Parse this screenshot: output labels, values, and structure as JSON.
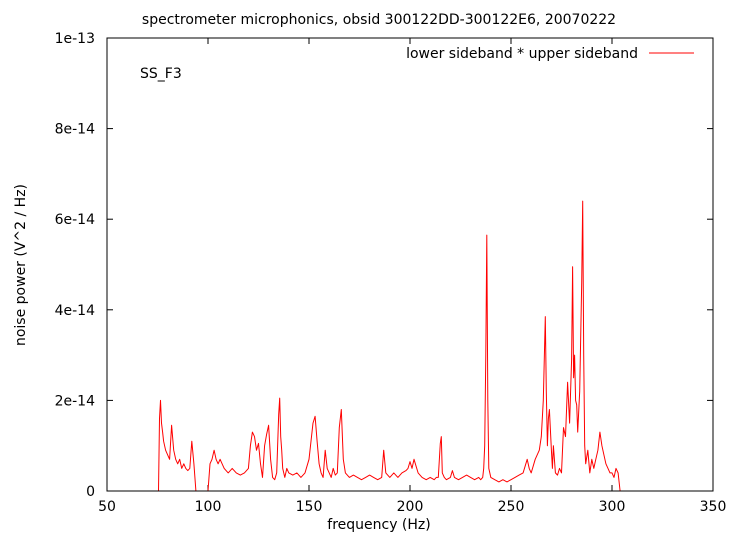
{
  "chart_data": {
    "type": "line",
    "title": "spectrometer microphonics, obsid 300122DD-300122E6, 20070222",
    "xlabel": "frequency (Hz)",
    "ylabel": "noise power (V^2 / Hz)",
    "annotation": "SS_F3",
    "xlim": [
      50,
      350
    ],
    "ylim": [
      0,
      1e-13
    ],
    "xticks": [
      50,
      100,
      150,
      200,
      250,
      300,
      350
    ],
    "yticks": [
      0,
      2e-14,
      4e-14,
      6e-14,
      8e-14,
      1e-13
    ],
    "ytick_labels": [
      "0",
      "2e-14",
      "4e-14",
      "6e-14",
      "8e-14",
      "1e-13"
    ],
    "grid": false,
    "legend_position": "top-right",
    "series": [
      {
        "name": "lower sideband * upper sideband",
        "color": "#ff0000",
        "x": [
          50,
          75.5,
          76,
          76.5,
          77,
          77.5,
          78,
          79,
          80,
          81,
          82,
          83,
          84,
          85,
          86,
          87,
          88,
          89,
          90,
          91,
          92,
          93,
          93.5,
          94,
          100,
          100.5,
          101,
          102,
          103,
          104,
          105,
          106,
          107,
          108,
          110,
          112,
          114,
          116,
          118,
          120,
          121,
          122,
          123,
          124,
          125,
          126,
          127,
          128,
          129,
          130,
          131,
          132,
          133,
          134,
          135,
          135.5,
          136,
          136.5,
          137,
          138,
          139,
          140,
          142,
          144,
          146,
          148,
          150,
          151,
          152,
          153,
          154,
          155,
          156,
          157,
          158,
          159,
          160,
          161,
          162,
          163,
          164,
          165,
          166,
          167,
          168,
          170,
          172,
          174,
          176,
          178,
          180,
          182,
          184,
          186,
          187,
          188,
          190,
          192,
          194,
          196,
          198,
          199,
          200,
          201,
          202,
          204,
          206,
          208,
          210,
          212,
          213,
          214,
          215,
          215.5,
          216,
          217,
          218,
          220,
          221,
          222,
          224,
          226,
          228,
          230,
          232,
          234,
          235,
          236,
          236.5,
          237,
          237.5,
          238,
          238.5,
          239,
          240,
          242,
          244,
          246,
          248,
          250,
          252,
          254,
          256,
          258,
          259,
          260,
          262,
          264,
          265,
          266,
          267,
          267.5,
          268,
          268.5,
          269,
          270,
          270.5,
          271,
          272,
          273,
          274,
          275,
          276,
          277,
          278,
          279,
          280,
          280.5,
          281,
          281.5,
          282,
          282.5,
          283,
          284,
          285,
          285.5,
          286,
          286.5,
          287,
          288,
          289,
          290,
          291,
          292,
          293,
          294,
          295,
          296,
          297,
          298,
          299,
          300,
          301,
          302,
          303,
          304,
          350
        ],
        "y": [
          0,
          0,
          1.6e-14,
          2e-14,
          1.5e-14,
          1.3e-14,
          1.1e-14,
          9e-15,
          8e-15,
          7e-15,
          1.45e-14,
          9e-15,
          7e-15,
          6e-15,
          7e-15,
          5e-15,
          6e-15,
          5e-15,
          4.5e-15,
          5e-15,
          1.1e-14,
          6e-15,
          3e-15,
          0,
          0,
          3e-15,
          6e-15,
          7e-15,
          9e-15,
          7e-15,
          6e-15,
          7e-15,
          6e-15,
          5e-15,
          4e-15,
          5e-15,
          4e-15,
          3.5e-15,
          4e-15,
          5e-15,
          1e-14,
          1.3e-14,
          1.2e-14,
          9e-15,
          1.05e-14,
          6e-15,
          3e-15,
          1e-14,
          1.25e-14,
          1.45e-14,
          7e-15,
          3e-15,
          2.5e-15,
          4e-15,
          1.7e-14,
          2.05e-14,
          1.2e-14,
          9e-15,
          5e-15,
          3e-15,
          5e-15,
          4e-15,
          3.5e-15,
          4e-15,
          3e-15,
          4e-15,
          7e-15,
          1.1e-14,
          1.5e-14,
          1.65e-14,
          1.1e-14,
          6e-15,
          4e-15,
          3e-15,
          9e-15,
          5e-15,
          4e-15,
          3e-15,
          5e-15,
          3.5e-15,
          4e-15,
          1.4e-14,
          1.8e-14,
          7e-15,
          4e-15,
          3e-15,
          3.5e-15,
          3e-15,
          2.5e-15,
          3e-15,
          3.5e-15,
          3e-15,
          2.5e-15,
          3e-15,
          9e-15,
          4e-15,
          3e-15,
          4e-15,
          3e-15,
          4e-15,
          4.5e-15,
          5e-15,
          6.5e-15,
          5e-15,
          7e-15,
          4e-15,
          3e-15,
          2.5e-15,
          3e-15,
          2.5e-15,
          3e-15,
          3e-15,
          1.05e-14,
          1.2e-14,
          4e-15,
          3e-15,
          2.5e-15,
          3e-15,
          4.5e-15,
          3e-15,
          2.5e-15,
          3e-15,
          3.5e-15,
          3e-15,
          2.5e-15,
          3e-15,
          2.5e-15,
          3e-15,
          5e-15,
          1e-14,
          3e-14,
          5.65e-14,
          2e-14,
          5e-15,
          3e-15,
          2.5e-15,
          2e-15,
          2.5e-15,
          2e-15,
          2.5e-15,
          3e-15,
          3.5e-15,
          4e-15,
          7e-15,
          5e-15,
          4e-15,
          7e-15,
          9e-15,
          1.2e-14,
          2e-14,
          3.85e-14,
          2.2e-14,
          1e-14,
          1.6e-14,
          1.8e-14,
          9e-15,
          5e-15,
          1e-14,
          4e-15,
          3.5e-15,
          5e-15,
          4e-15,
          1.4e-14,
          1.2e-14,
          2.4e-14,
          1.5e-14,
          2.9e-14,
          4.95e-14,
          2.5e-14,
          3e-14,
          2e-14,
          1.9e-14,
          1.3e-14,
          2.2e-14,
          4.6e-14,
          6.4e-14,
          3e-14,
          1e-14,
          6e-15,
          9e-15,
          4e-15,
          7e-15,
          5e-15,
          7e-15,
          9e-15,
          1.3e-14,
          1e-14,
          8e-15,
          6e-15,
          5e-15,
          4e-15,
          4e-15,
          3e-15,
          5e-15,
          4e-15,
          0,
          0
        ]
      }
    ]
  }
}
